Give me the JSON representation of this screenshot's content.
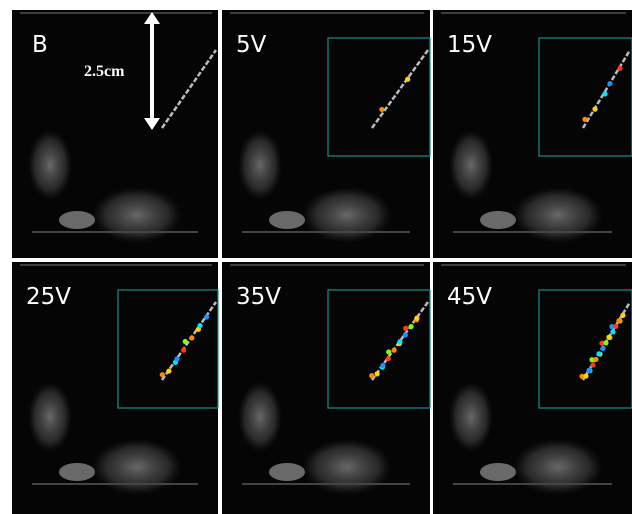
{
  "panels": [
    {
      "label": "B"
    },
    {
      "label": "5V"
    },
    {
      "label": "15V"
    },
    {
      "label": "25V"
    },
    {
      "label": "35V"
    },
    {
      "label": "45V"
    }
  ],
  "scale_bar": {
    "label": "2.5cm"
  }
}
